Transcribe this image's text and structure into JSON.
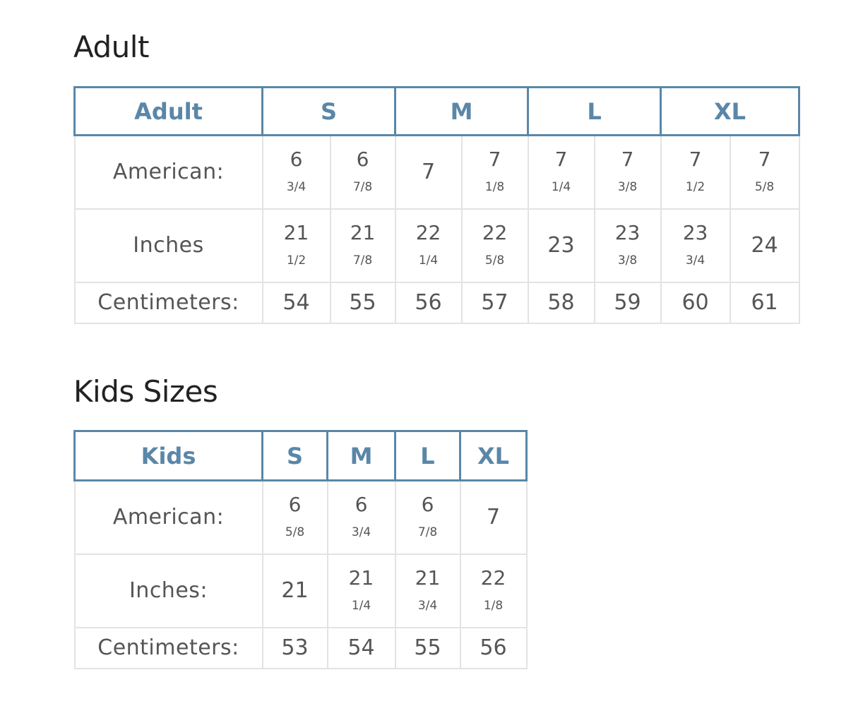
{
  "adult": {
    "heading": "Adult",
    "header": {
      "label": "Adult",
      "sizes": [
        "S",
        "M",
        "L",
        "XL"
      ]
    },
    "rows": [
      {
        "label": "American:",
        "cells": [
          {
            "whole": "6",
            "frac": "3/4"
          },
          {
            "whole": "6",
            "frac": "7/8"
          },
          {
            "whole": "7",
            "frac": ""
          },
          {
            "whole": "7",
            "frac": "1/8"
          },
          {
            "whole": "7",
            "frac": "1/4"
          },
          {
            "whole": "7",
            "frac": "3/8"
          },
          {
            "whole": "7",
            "frac": "1/2"
          },
          {
            "whole": "7",
            "frac": "5/8"
          }
        ]
      },
      {
        "label": "Inches",
        "cells": [
          {
            "whole": "21",
            "frac": "1/2"
          },
          {
            "whole": "21",
            "frac": "7/8"
          },
          {
            "whole": "22",
            "frac": "1/4"
          },
          {
            "whole": "22",
            "frac": "5/8"
          },
          {
            "whole": "23",
            "frac": ""
          },
          {
            "whole": "23",
            "frac": "3/8"
          },
          {
            "whole": "23",
            "frac": "3/4"
          },
          {
            "whole": "24",
            "frac": ""
          }
        ]
      },
      {
        "label": "Centimeters:",
        "cells": [
          {
            "whole": "54",
            "frac": ""
          },
          {
            "whole": "55",
            "frac": ""
          },
          {
            "whole": "56",
            "frac": ""
          },
          {
            "whole": "57",
            "frac": ""
          },
          {
            "whole": "58",
            "frac": ""
          },
          {
            "whole": "59",
            "frac": ""
          },
          {
            "whole": "60",
            "frac": ""
          },
          {
            "whole": "61",
            "frac": ""
          }
        ]
      }
    ]
  },
  "kids": {
    "heading": "Kids Sizes",
    "header": {
      "label": "Kids",
      "sizes": [
        "S",
        "M",
        "L",
        "XL"
      ]
    },
    "rows": [
      {
        "label": "American:",
        "cells": [
          {
            "whole": "6",
            "frac": "5/8"
          },
          {
            "whole": "6",
            "frac": "3/4"
          },
          {
            "whole": "6",
            "frac": "7/8"
          },
          {
            "whole": "7",
            "frac": ""
          }
        ]
      },
      {
        "label": "Inches:",
        "cells": [
          {
            "whole": "21",
            "frac": ""
          },
          {
            "whole": "21",
            "frac": "1/4"
          },
          {
            "whole": "21",
            "frac": "3/4"
          },
          {
            "whole": "22",
            "frac": "1/8"
          }
        ]
      },
      {
        "label": "Centimeters:",
        "cells": [
          {
            "whole": "53",
            "frac": ""
          },
          {
            "whole": "54",
            "frac": ""
          },
          {
            "whole": "55",
            "frac": ""
          },
          {
            "whole": "56",
            "frac": ""
          }
        ]
      }
    ]
  },
  "colors": {
    "header_border": "#5a87a8",
    "header_text": "#5a87a8",
    "cell_border": "#e3e3e3",
    "body_text": "#555555"
  }
}
